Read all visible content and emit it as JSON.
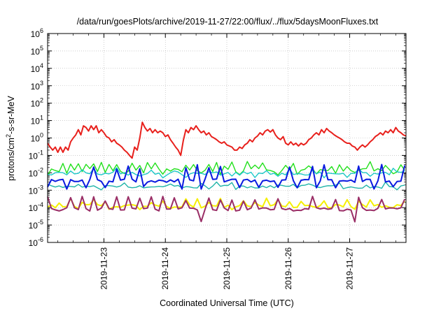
{
  "chart_data": {
    "type": "line",
    "title": "/data/run/goesPlots/archive/2019-11-27/22:00/flux/../flux/5daysMoonFluxes.txt",
    "xlabel": "Coordinated Universal Time (UTC)",
    "ylabel": {
      "pre": "protons/cm",
      "sup": "2",
      "post": "-s-sr-MeV"
    },
    "y_scale": "log",
    "ylim_exp": [
      -6,
      6
    ],
    "ytick_base": "10",
    "ytick_exponents": [
      -6,
      -5,
      -4,
      -3,
      -2,
      -1,
      0,
      1,
      2,
      3,
      4,
      5,
      6
    ],
    "xlim": [
      "2019-11-22T02:00",
      "2019-11-27T22:00"
    ],
    "xticks": [
      {
        "label": "2019-11-23",
        "t": "2019-11-23"
      },
      {
        "label": "2019-11-24",
        "t": "2019-11-24"
      },
      {
        "label": "2019-11-25",
        "t": "2019-11-25"
      },
      {
        "label": "2019-11-26",
        "t": "2019-11-26"
      },
      {
        "label": "2019-11-27",
        "t": "2019-11-27"
      }
    ],
    "grid": true,
    "legend": "none",
    "series": [
      {
        "color": "#e8201c",
        "width": 2.0,
        "points": [
          [
            "2019-11-22T02:00",
            0.5
          ],
          [
            "2019-11-22T03:00",
            0.3
          ],
          [
            "2019-11-22T04:00",
            0.2
          ],
          [
            "2019-11-22T05:00",
            0.3
          ],
          [
            "2019-11-22T06:00",
            0.15
          ],
          [
            "2019-11-22T07:00",
            0.3
          ],
          [
            "2019-11-22T08:00",
            0.15
          ],
          [
            "2019-11-22T09:00",
            0.3
          ],
          [
            "2019-11-22T10:00",
            0.2
          ],
          [
            "2019-11-22T11:00",
            0.6
          ],
          [
            "2019-11-22T12:00",
            1.0
          ],
          [
            "2019-11-22T13:00",
            1.5
          ],
          [
            "2019-11-22T14:00",
            3.0
          ],
          [
            "2019-11-22T15:00",
            1.5
          ],
          [
            "2019-11-22T16:00",
            5.0
          ],
          [
            "2019-11-22T17:00",
            4.0
          ],
          [
            "2019-11-22T18:00",
            2.5
          ],
          [
            "2019-11-22T19:00",
            5.0
          ],
          [
            "2019-11-22T20:00",
            3.0
          ],
          [
            "2019-11-22T21:00",
            5.0
          ],
          [
            "2019-11-22T22:00",
            2.0
          ],
          [
            "2019-11-22T23:00",
            3.0
          ],
          [
            "2019-11-23T00:00",
            2.0
          ],
          [
            "2019-11-23T01:00",
            1.2
          ],
          [
            "2019-11-23T02:00",
            1.0
          ],
          [
            "2019-11-23T03:00",
            0.6
          ],
          [
            "2019-11-23T04:00",
            0.8
          ],
          [
            "2019-11-23T05:00",
            0.5
          ],
          [
            "2019-11-23T06:00",
            0.4
          ],
          [
            "2019-11-23T07:00",
            0.3
          ],
          [
            "2019-11-23T08:00",
            0.2
          ],
          [
            "2019-11-23T09:00",
            0.15
          ],
          [
            "2019-11-23T10:00",
            0.1
          ],
          [
            "2019-11-23T11:00",
            0.07
          ],
          [
            "2019-11-23T12:00",
            0.3
          ],
          [
            "2019-11-23T13:00",
            0.2
          ],
          [
            "2019-11-23T14:00",
            1.0
          ],
          [
            "2019-11-23T15:00",
            8.0
          ],
          [
            "2019-11-23T16:00",
            4.0
          ],
          [
            "2019-11-23T17:00",
            2.5
          ],
          [
            "2019-11-23T18:00",
            3.5
          ],
          [
            "2019-11-23T19:00",
            2.0
          ],
          [
            "2019-11-23T20:00",
            3.0
          ],
          [
            "2019-11-23T21:00",
            2.0
          ],
          [
            "2019-11-23T22:00",
            2.5
          ],
          [
            "2019-11-23T23:00",
            2.0
          ],
          [
            "2019-11-24T00:00",
            1.2
          ],
          [
            "2019-11-24T01:00",
            1.5
          ],
          [
            "2019-11-24T02:00",
            0.8
          ],
          [
            "2019-11-24T03:00",
            0.5
          ],
          [
            "2019-11-24T04:00",
            0.3
          ],
          [
            "2019-11-24T05:00",
            0.2
          ],
          [
            "2019-11-24T06:00",
            0.1
          ],
          [
            "2019-11-24T07:00",
            0.7
          ],
          [
            "2019-11-24T08:00",
            3.0
          ],
          [
            "2019-11-24T09:00",
            2.0
          ],
          [
            "2019-11-24T10:00",
            4.0
          ],
          [
            "2019-11-24T11:00",
            3.0
          ],
          [
            "2019-11-24T12:00",
            5.0
          ],
          [
            "2019-11-24T13:00",
            3.0
          ],
          [
            "2019-11-24T14:00",
            2.0
          ],
          [
            "2019-11-24T15:00",
            2.5
          ],
          [
            "2019-11-24T16:00",
            1.5
          ],
          [
            "2019-11-24T17:00",
            2.0
          ],
          [
            "2019-11-24T18:00",
            1.2
          ],
          [
            "2019-11-24T19:00",
            1.0
          ],
          [
            "2019-11-24T20:00",
            0.8
          ],
          [
            "2019-11-24T21:00",
            0.6
          ],
          [
            "2019-11-24T22:00",
            0.5
          ],
          [
            "2019-11-24T23:00",
            0.6
          ],
          [
            "2019-11-25T00:00",
            0.4
          ],
          [
            "2019-11-25T01:00",
            0.35
          ],
          [
            "2019-11-25T02:00",
            0.3
          ],
          [
            "2019-11-25T03:00",
            0.2
          ],
          [
            "2019-11-25T04:00",
            0.2
          ],
          [
            "2019-11-25T05:00",
            0.3
          ],
          [
            "2019-11-25T06:00",
            0.25
          ],
          [
            "2019-11-25T07:00",
            0.4
          ],
          [
            "2019-11-25T08:00",
            0.5
          ],
          [
            "2019-11-25T09:00",
            0.8
          ],
          [
            "2019-11-25T10:00",
            0.6
          ],
          [
            "2019-11-25T11:00",
            1.0
          ],
          [
            "2019-11-25T12:00",
            1.3
          ],
          [
            "2019-11-25T13:00",
            2.0
          ],
          [
            "2019-11-25T14:00",
            1.5
          ],
          [
            "2019-11-25T15:00",
            2.5
          ],
          [
            "2019-11-25T16:00",
            3.0
          ],
          [
            "2019-11-25T17:00",
            2.2
          ],
          [
            "2019-11-25T18:00",
            3.0
          ],
          [
            "2019-11-25T19:00",
            1.5
          ],
          [
            "2019-11-25T20:00",
            1.0
          ],
          [
            "2019-11-25T21:00",
            0.8
          ],
          [
            "2019-11-25T22:00",
            1.2
          ],
          [
            "2019-11-25T23:00",
            0.5
          ],
          [
            "2019-11-26T00:00",
            0.4
          ],
          [
            "2019-11-26T01:00",
            0.6
          ],
          [
            "2019-11-26T02:00",
            0.4
          ],
          [
            "2019-11-26T03:00",
            0.5
          ],
          [
            "2019-11-26T04:00",
            0.35
          ],
          [
            "2019-11-26T05:00",
            0.5
          ],
          [
            "2019-11-26T06:00",
            0.4
          ],
          [
            "2019-11-26T07:00",
            0.5
          ],
          [
            "2019-11-26T08:00",
            0.8
          ],
          [
            "2019-11-26T09:00",
            1.0
          ],
          [
            "2019-11-26T10:00",
            1.5
          ],
          [
            "2019-11-26T11:00",
            2.0
          ],
          [
            "2019-11-26T12:00",
            1.5
          ],
          [
            "2019-11-26T13:00",
            3.0
          ],
          [
            "2019-11-26T14:00",
            2.0
          ],
          [
            "2019-11-26T15:00",
            3.5
          ],
          [
            "2019-11-26T16:00",
            2.5
          ],
          [
            "2019-11-26T17:00",
            2.0
          ],
          [
            "2019-11-26T18:00",
            1.5
          ],
          [
            "2019-11-26T19:00",
            1.2
          ],
          [
            "2019-11-26T20:00",
            1.0
          ],
          [
            "2019-11-26T21:00",
            0.8
          ],
          [
            "2019-11-26T22:00",
            0.6
          ],
          [
            "2019-11-26T23:00",
            0.5
          ],
          [
            "2019-11-27T00:00",
            0.5
          ],
          [
            "2019-11-27T01:00",
            0.35
          ],
          [
            "2019-11-27T02:00",
            0.3
          ],
          [
            "2019-11-27T03:00",
            0.2
          ],
          [
            "2019-11-27T04:00",
            0.3
          ],
          [
            "2019-11-27T05:00",
            0.4
          ],
          [
            "2019-11-27T06:00",
            0.3
          ],
          [
            "2019-11-27T07:00",
            0.4
          ],
          [
            "2019-11-27T08:00",
            0.6
          ],
          [
            "2019-11-27T09:00",
            0.8
          ],
          [
            "2019-11-27T10:00",
            1.2
          ],
          [
            "2019-11-27T11:00",
            1.5
          ],
          [
            "2019-11-27T12:00",
            2.0
          ],
          [
            "2019-11-27T13:00",
            1.5
          ],
          [
            "2019-11-27T14:00",
            2.5
          ],
          [
            "2019-11-27T15:00",
            2.0
          ],
          [
            "2019-11-27T16:00",
            3.0
          ],
          [
            "2019-11-27T17:00",
            2.0
          ],
          [
            "2019-11-27T18:00",
            4.0
          ],
          [
            "2019-11-27T19:00",
            2.5
          ],
          [
            "2019-11-27T20:00",
            2.0
          ],
          [
            "2019-11-27T21:00",
            1.5
          ],
          [
            "2019-11-27T22:00",
            1.3
          ]
        ]
      },
      {
        "color": "#22e01c",
        "width": 1.4,
        "base": 0.014,
        "spike": 0.045,
        "dip": 0.009,
        "spike_every": 2,
        "dip_every": 5,
        "seed": 7
      },
      {
        "color": "#1cc8c8",
        "width": 1.4,
        "base": 0.009,
        "spike": 0.02,
        "dip": 0.006,
        "spike_every": 3,
        "dip_every": 6,
        "seed": 11
      },
      {
        "color": "#1fb4a8",
        "width": 1.4,
        "base": 0.0016,
        "spike": 0.003,
        "dip": 0.0013,
        "spike_every": 4,
        "dip_every": 7,
        "seed": 17
      },
      {
        "color": "#0a1ae0",
        "width": 2.0,
        "base": 0.0035,
        "spike": 0.03,
        "dip": 0.0014,
        "spike_every": 3,
        "dip_every": 5,
        "seed": 23
      },
      {
        "color": "#f5f000",
        "width": 2.0,
        "base": 0.00012,
        "spike": 0.00035,
        "dip": 9e-05,
        "spike_every": 3,
        "dip_every": 8,
        "seed": 31
      },
      {
        "color": "#9a2e66",
        "width": 2.0,
        "base": 8e-05,
        "spike": 0.00045,
        "dip": 1.5e-05,
        "spike_every": 3,
        "dip_every": 40,
        "seed": 41
      }
    ]
  }
}
